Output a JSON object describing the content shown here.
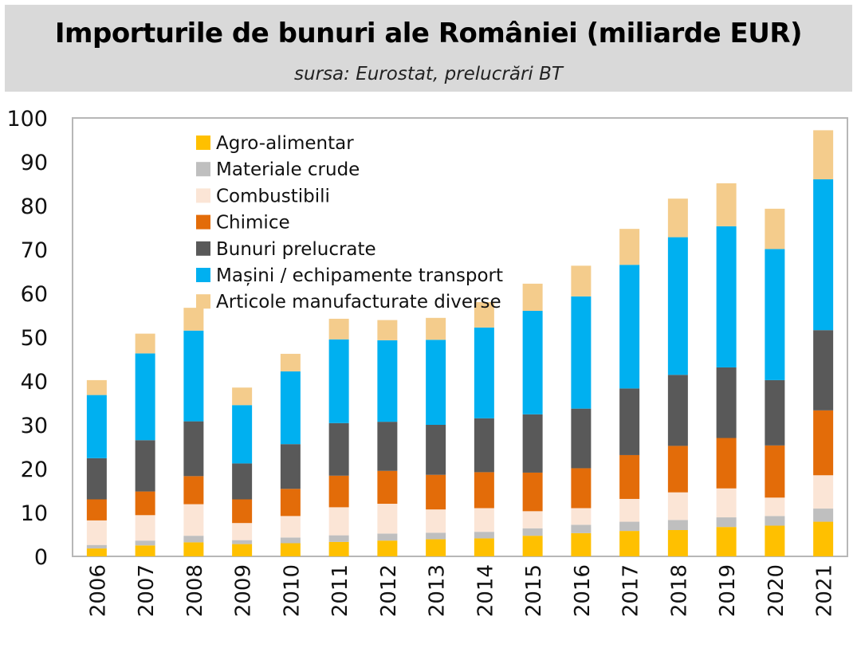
{
  "title": "Importurile de bunuri ale României (miliarde EUR)",
  "subtitle": "sursa: Eurostat, prelucrări BT",
  "chart_data": {
    "type": "bar",
    "stacked": true,
    "title": "Importurile de bunuri ale României (miliarde EUR)",
    "subtitle": "sursa: Eurostat, prelucrări BT",
    "xlabel": "",
    "ylabel": "",
    "ylim": [
      0,
      100
    ],
    "yticks": [
      0,
      10,
      20,
      30,
      40,
      50,
      60,
      70,
      80,
      90,
      100
    ],
    "grid": false,
    "legend_position": "top-left",
    "categories": [
      "2006",
      "2007",
      "2008",
      "2009",
      "2010",
      "2011",
      "2012",
      "2013",
      "2014",
      "2015",
      "2016",
      "2017",
      "2018",
      "2019",
      "2020",
      "2021"
    ],
    "series": [
      {
        "name": "Agro-alimentar",
        "color": "#ffc000",
        "values": [
          1.8,
          2.5,
          3.2,
          2.8,
          3.0,
          3.3,
          3.6,
          3.9,
          4.1,
          4.7,
          5.3,
          5.8,
          6.0,
          6.7,
          7.0,
          7.9
        ]
      },
      {
        "name": "Materiale crude",
        "color": "#bfbfbf",
        "values": [
          0.8,
          1.1,
          1.5,
          0.9,
          1.3,
          1.5,
          1.6,
          1.5,
          1.5,
          1.7,
          1.9,
          2.1,
          2.3,
          2.2,
          2.2,
          3.0
        ]
      },
      {
        "name": "Combustibili",
        "color": "#fbe5d6",
        "values": [
          5.6,
          5.8,
          7.2,
          3.9,
          4.9,
          6.4,
          6.8,
          5.3,
          5.4,
          3.9,
          3.8,
          5.2,
          6.3,
          6.6,
          4.2,
          7.6
        ]
      },
      {
        "name": "Chimice",
        "color": "#e36c09",
        "values": [
          4.8,
          5.4,
          6.4,
          5.4,
          6.2,
          7.2,
          7.5,
          7.9,
          8.2,
          8.8,
          9.1,
          10.0,
          10.6,
          11.5,
          11.9,
          14.8
        ]
      },
      {
        "name": "Bunuri prelucrate",
        "color": "#595959",
        "values": [
          9.4,
          11.7,
          12.5,
          8.2,
          10.2,
          12.0,
          11.2,
          11.4,
          12.3,
          13.3,
          13.6,
          15.2,
          16.2,
          16.1,
          14.9,
          18.3
        ]
      },
      {
        "name": "Mașini / echipamente transport",
        "color": "#00b0f0",
        "values": [
          14.4,
          19.8,
          20.7,
          13.3,
          16.6,
          19.1,
          18.6,
          19.4,
          20.7,
          23.6,
          25.6,
          28.2,
          31.4,
          32.2,
          29.9,
          34.4
        ]
      },
      {
        "name": "Articole manufacturate diverse",
        "color": "#f4cc8c",
        "values": [
          3.4,
          4.5,
          5.2,
          4.0,
          4.0,
          4.7,
          4.6,
          5.0,
          5.8,
          6.2,
          7.0,
          8.2,
          8.8,
          9.8,
          9.2,
          11.2
        ]
      }
    ]
  }
}
